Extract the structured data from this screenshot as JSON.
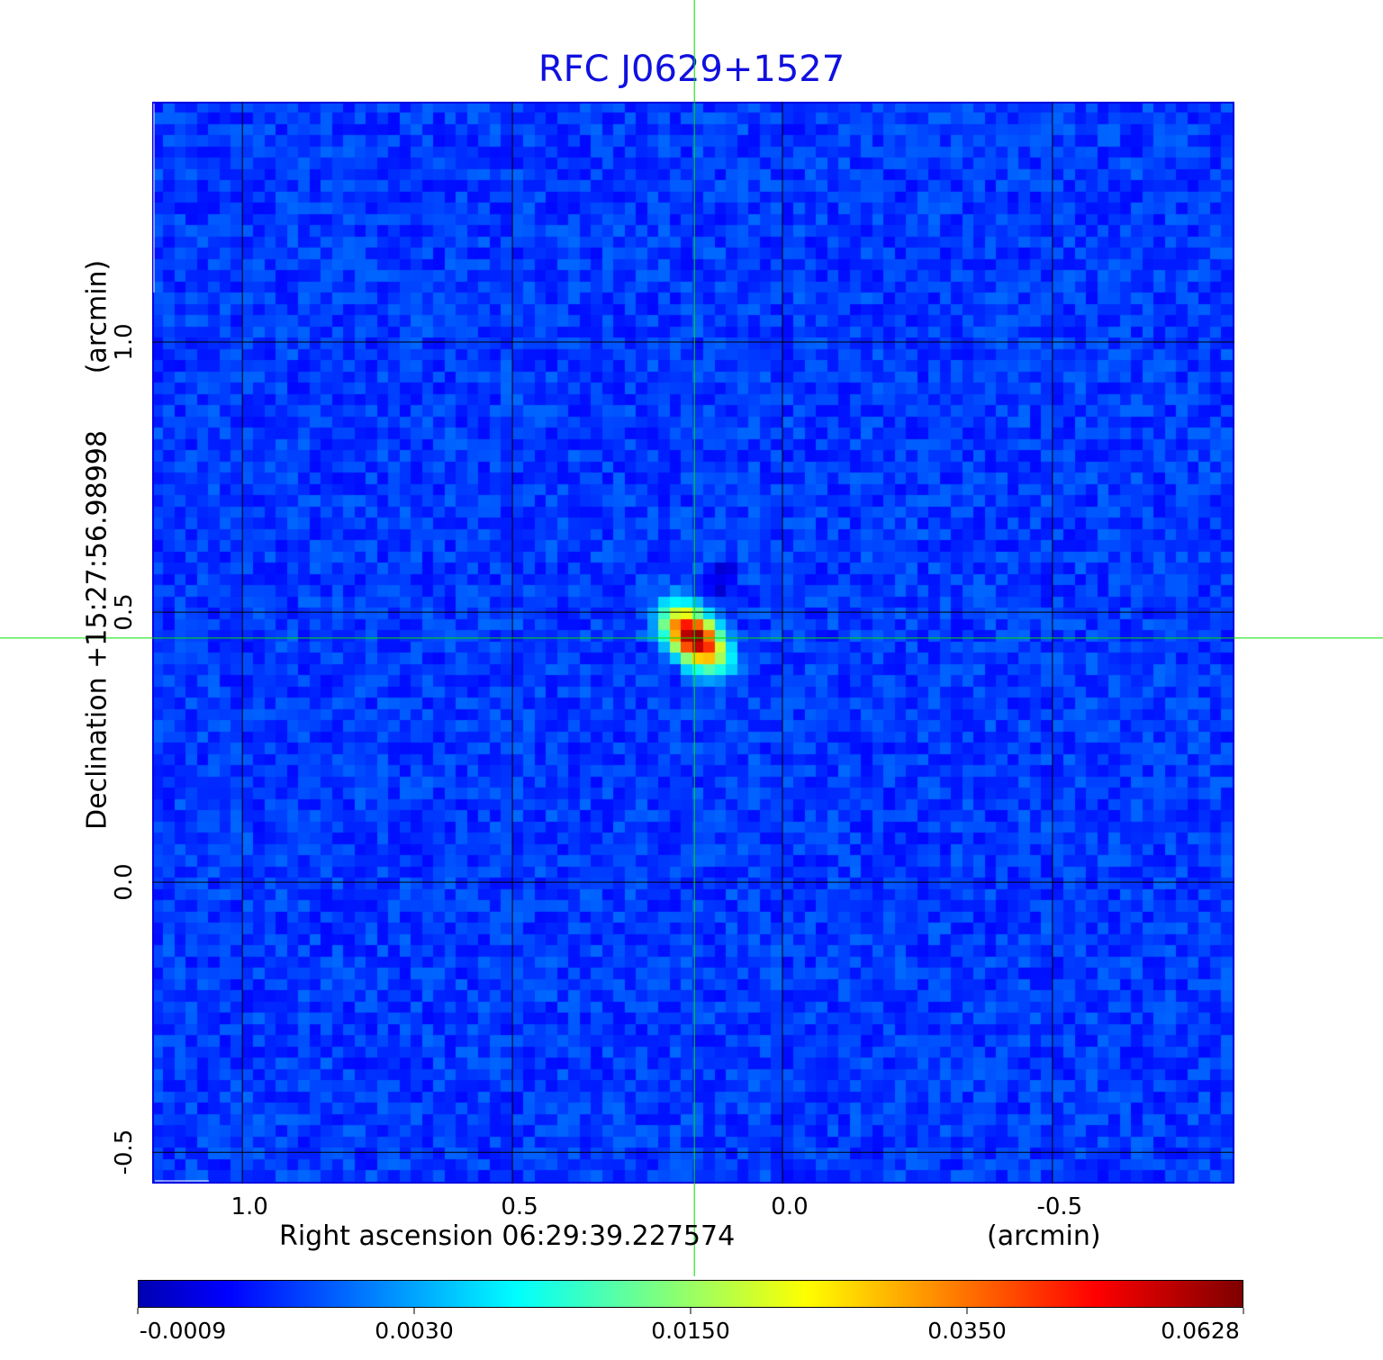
{
  "chart_data": {
    "type": "heatmap",
    "title": "RFC J0629+1527",
    "xlabel": "Right ascension  06:29:39.227574",
    "xunit": "(arcmin)",
    "ylabel": "Declination  +15:27:56.98998",
    "yunit": "(arcmin)",
    "xlim": [
      1.167,
      -0.837
    ],
    "ylim": [
      -0.558,
      1.445
    ],
    "xticks": [
      "1.0",
      "0.5",
      "0.0",
      "-0.5"
    ],
    "xtick_values": [
      1.0,
      0.5,
      0.0,
      -0.5
    ],
    "yticks": [
      "1.0",
      "0.5",
      "0.0",
      "-0.5"
    ],
    "ytick_values": [
      1.0,
      0.5,
      0.0,
      -0.5
    ],
    "grid": true,
    "crosshair": {
      "x": 0.163,
      "y": 0.452,
      "color": "#00e000"
    },
    "source_peak": {
      "x": 0.163,
      "y": 0.452,
      "value": 0.0628
    },
    "colormap": "jet",
    "colorbar": {
      "ticks": [
        "-0.0009",
        "0.0030",
        "0.0150",
        "0.0350",
        "0.0628"
      ],
      "tick_values": [
        -0.0009,
        0.003,
        0.015,
        0.035,
        0.0628
      ],
      "orientation": "horizontal",
      "placement": "bottom"
    },
    "title_color": "#1010e0"
  }
}
